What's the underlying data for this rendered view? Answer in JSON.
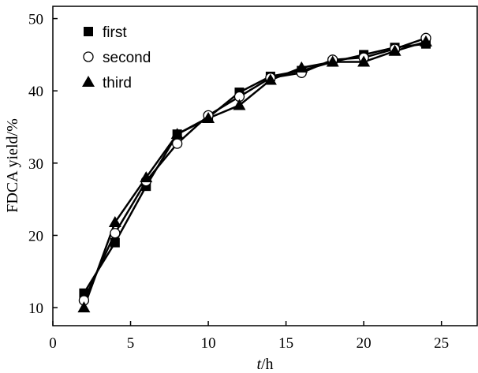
{
  "chart_data": {
    "type": "line",
    "title": "",
    "xlabel_italic": "t",
    "xlabel_unit": "/h",
    "ylabel": "FDCA  yield/%",
    "xlim": [
      0,
      27.3
    ],
    "ylim": [
      7.5,
      51.7
    ],
    "xticks": [
      0,
      5,
      10,
      15,
      20,
      25
    ],
    "yticks": [
      10,
      20,
      30,
      40,
      50
    ],
    "grid": false,
    "legend_position": "top-left",
    "x": [
      2,
      4,
      6,
      8,
      10,
      12,
      14,
      16,
      18,
      20,
      22,
      24
    ],
    "series": [
      {
        "name": "first",
        "marker": "square",
        "values": [
          12,
          19,
          26.8,
          34,
          36.3,
          39.8,
          42,
          42.8,
          44,
          45,
          46,
          46.5
        ]
      },
      {
        "name": "second",
        "marker": "circle-open",
        "values": [
          11,
          20.3,
          27.5,
          32.7,
          36.6,
          39.2,
          41.8,
          42.5,
          44.3,
          44.6,
          45.8,
          47.3
        ]
      },
      {
        "name": "third",
        "marker": "triangle",
        "values": [
          10,
          21.8,
          28,
          34,
          36.2,
          38,
          41.5,
          43.2,
          44,
          44,
          45.5,
          46.8
        ]
      }
    ]
  }
}
